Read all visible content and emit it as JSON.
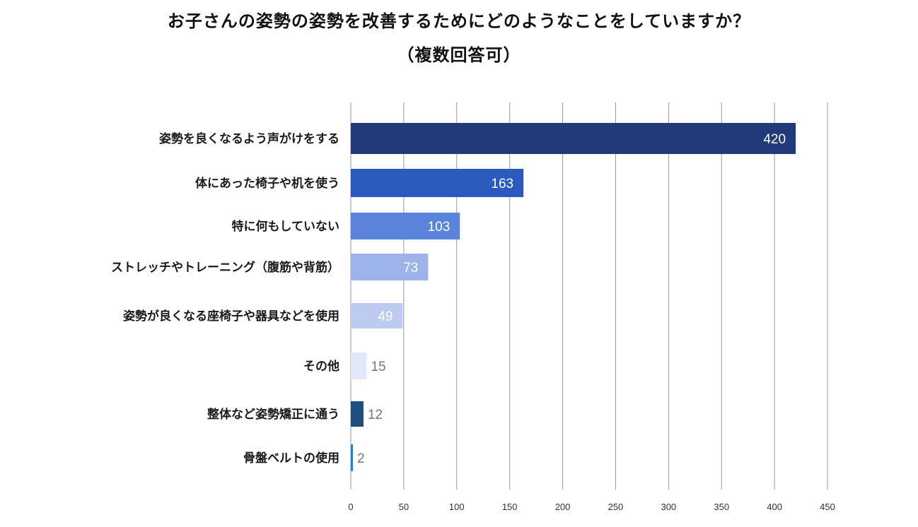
{
  "chart_data": {
    "type": "bar",
    "orientation": "horizontal",
    "title": "お子さんの姿勢の姿勢を改善するためにどのようなことをしていますか？",
    "subtitle": "（複数回答可）",
    "categories": [
      "姿勢を良くなるよう声がけをする",
      "体にあった椅子や机を使う",
      "特に何もしていない",
      "ストレッチやトレーニング（腹筋や背筋）",
      "姿勢が良くなる座椅子や器具などを使用",
      "その他",
      "整体など姿勢矯正に通う",
      "骨盤ベルトの使用"
    ],
    "values": [
      420,
      163,
      103,
      73,
      49,
      15,
      12,
      2
    ],
    "value_labels": [
      "420",
      "163",
      "103",
      "73",
      "49",
      "15",
      "12",
      "2"
    ],
    "bar_colors": [
      "#22397a",
      "#2b5abf",
      "#5b83dc",
      "#9db4ea",
      "#bccbef",
      "#e0e7f8",
      "#1f4e80",
      "#2f7fc4"
    ],
    "label_colors": [
      "#ffffff",
      "#ffffff",
      "#ffffff",
      "#ffffff",
      "#ffffff",
      "#777777",
      "#777777",
      "#777777"
    ],
    "xlim": [
      0,
      450
    ],
    "xticks": [
      0,
      50,
      100,
      150,
      200,
      250,
      300,
      350,
      400,
      450
    ],
    "xtick_labels": [
      "0",
      "50",
      "100",
      "150",
      "200",
      "250",
      "300",
      "350",
      "400",
      "450"
    ],
    "grid": true,
    "gridline_color": "#999999"
  }
}
